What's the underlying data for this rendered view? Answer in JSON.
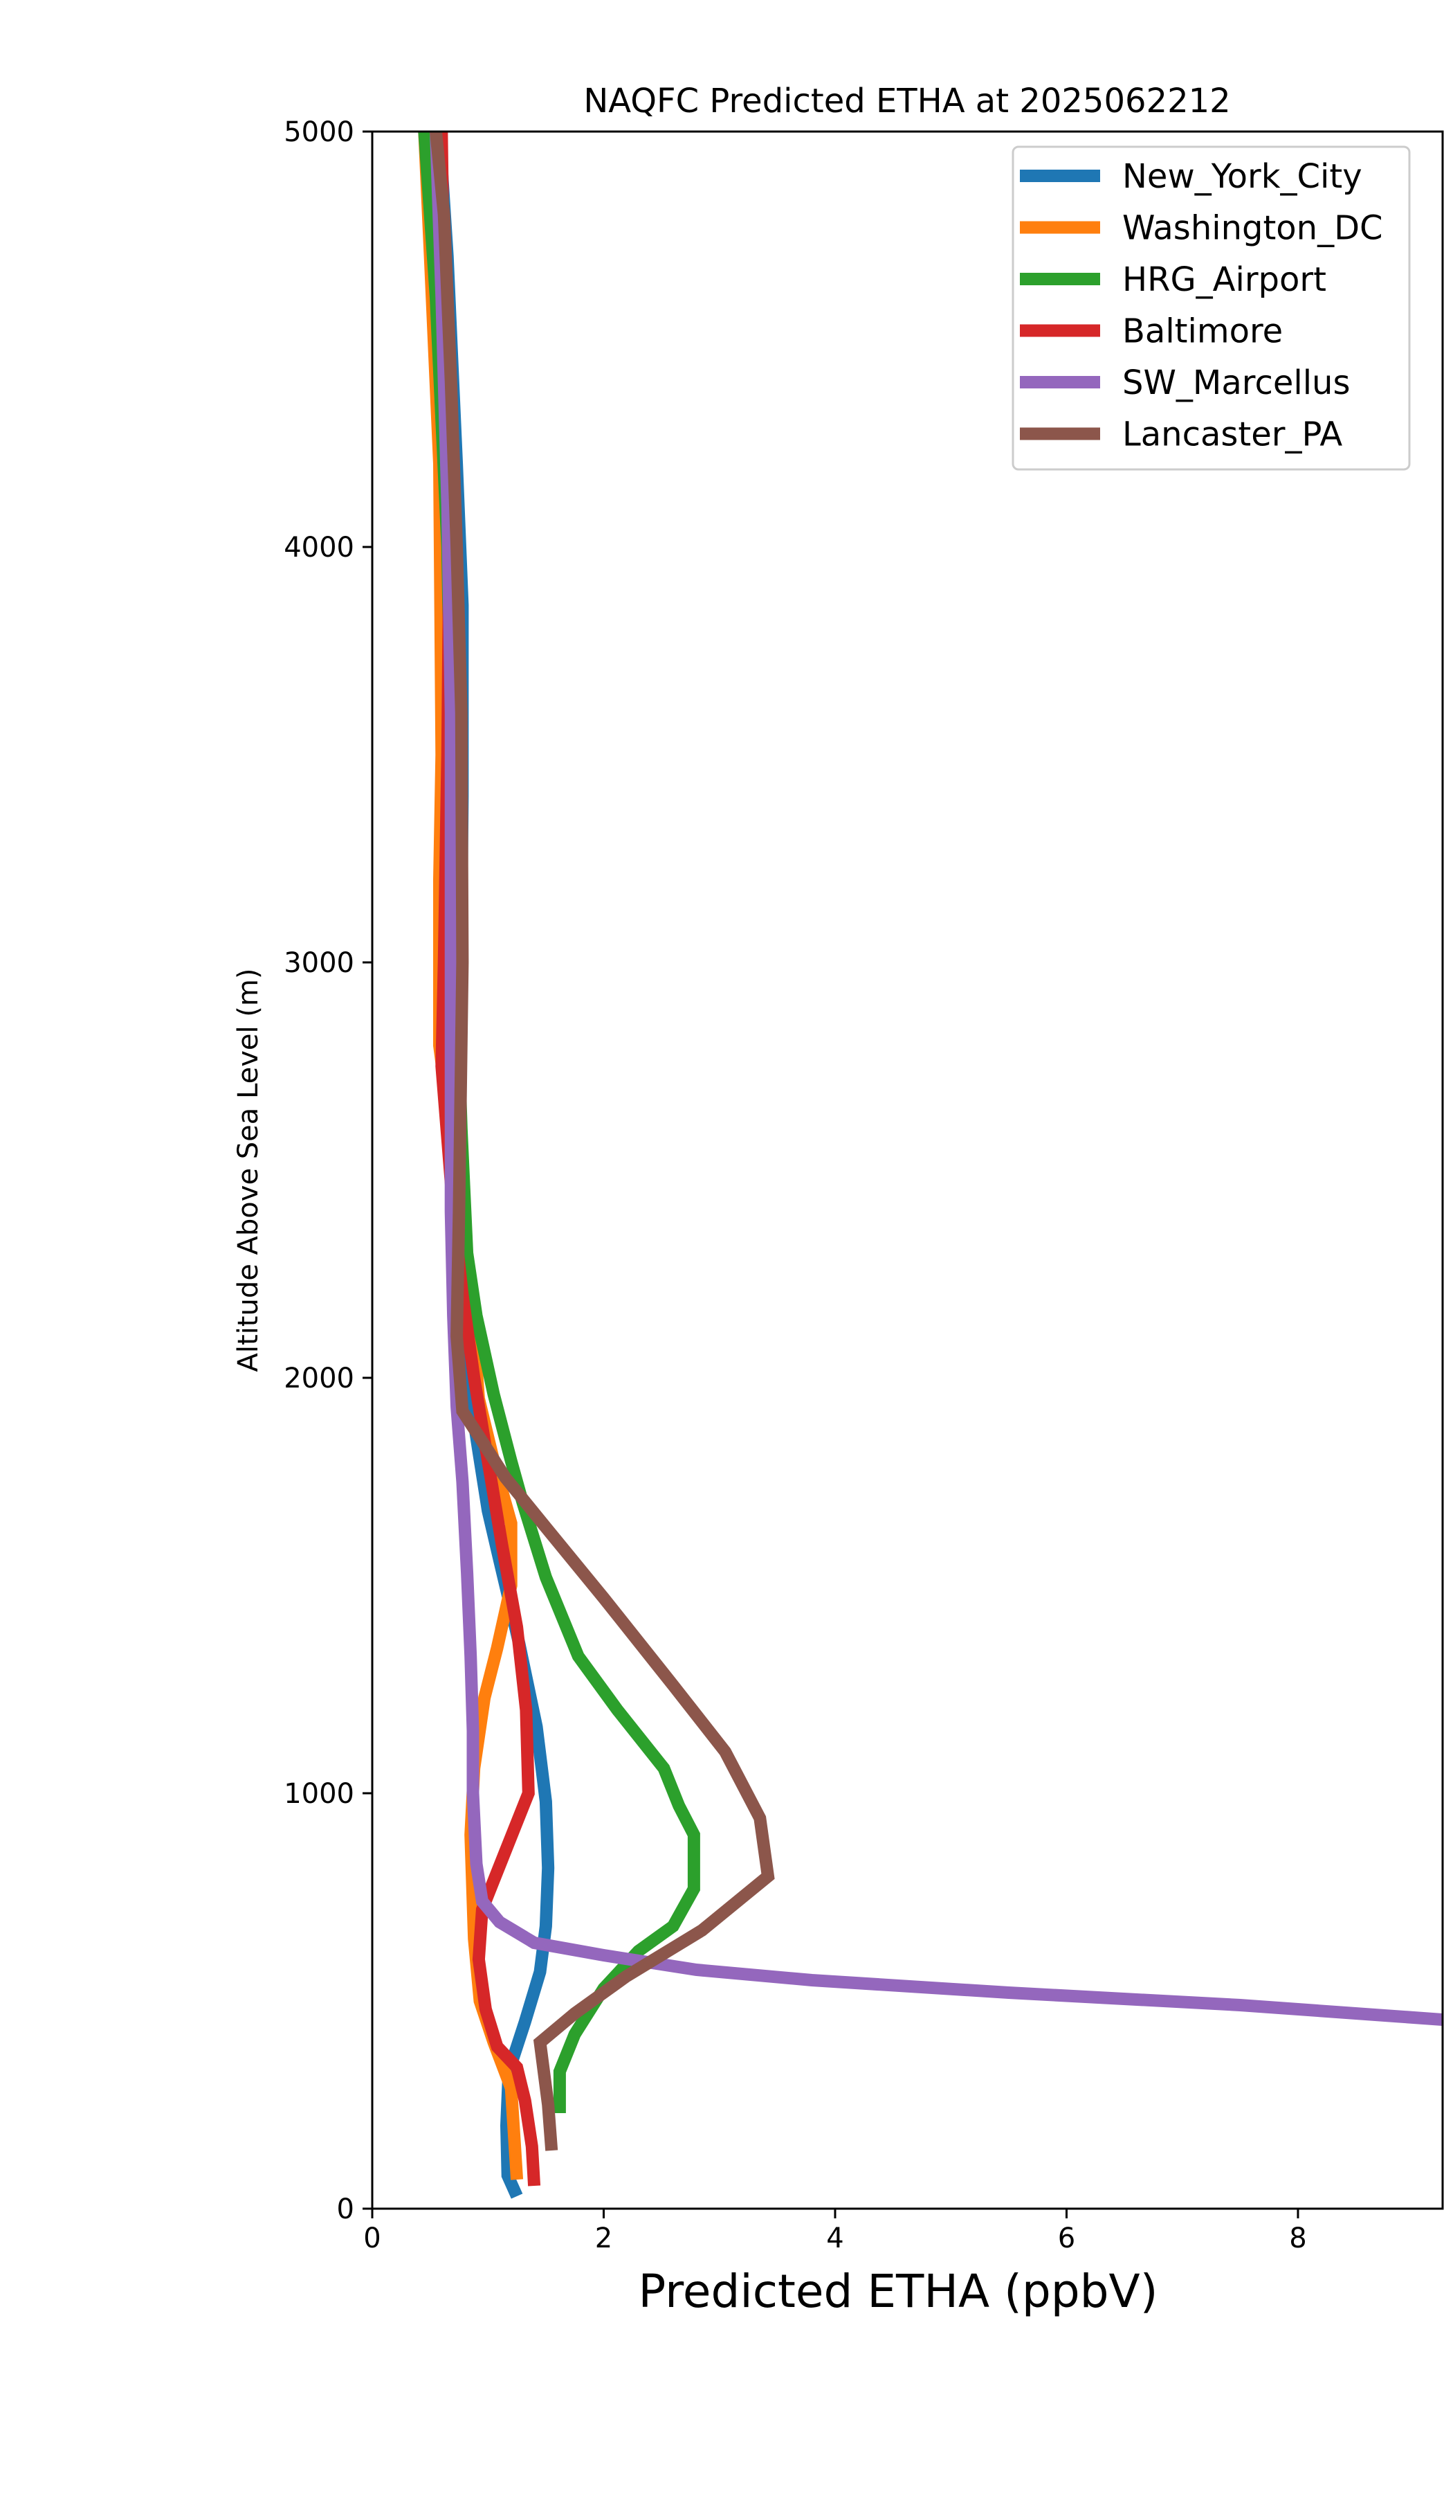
{
  "chart_data": {
    "type": "line",
    "title": "NAQFC Predicted ETHA at 2025062212",
    "xlabel": "Predicted ETHA (ppbV)",
    "ylabel": "Altitude Above Sea Level (m)",
    "xlim": [
      0,
      9.25
    ],
    "ylim": [
      0,
      5000
    ],
    "xticks": [
      0,
      2,
      4,
      6,
      8
    ],
    "yticks": [
      0,
      1000,
      2000,
      3000,
      4000,
      5000
    ],
    "grid": false,
    "legend_position": "top-right",
    "series": [
      {
        "name": "New_York_City",
        "color": "#1f77b4",
        "points": [
          [
            1.25,
            30
          ],
          [
            1.17,
            80
          ],
          [
            1.16,
            200
          ],
          [
            1.18,
            330
          ],
          [
            1.32,
            450
          ],
          [
            1.45,
            570
          ],
          [
            1.5,
            680
          ],
          [
            1.52,
            820
          ],
          [
            1.5,
            980
          ],
          [
            1.42,
            1160
          ],
          [
            1.27,
            1360
          ],
          [
            1.1,
            1560
          ],
          [
            1.0,
            1680
          ],
          [
            0.92,
            1820
          ],
          [
            0.82,
            2000
          ],
          [
            0.77,
            2200
          ],
          [
            0.76,
            2800
          ],
          [
            0.78,
            3400
          ],
          [
            0.78,
            3860
          ],
          [
            0.73,
            4200
          ],
          [
            0.65,
            4700
          ],
          [
            0.58,
            5000
          ]
        ]
      },
      {
        "name": "Washington_DC",
        "color": "#ff7f0e",
        "points": [
          [
            1.25,
            70
          ],
          [
            1.23,
            160
          ],
          [
            1.2,
            290
          ],
          [
            1.05,
            400
          ],
          [
            0.93,
            500
          ],
          [
            0.88,
            650
          ],
          [
            0.85,
            900
          ],
          [
            0.88,
            1060
          ],
          [
            0.97,
            1230
          ],
          [
            1.08,
            1350
          ],
          [
            1.2,
            1500
          ],
          [
            1.2,
            1650
          ],
          [
            1.05,
            1800
          ],
          [
            0.92,
            1950
          ],
          [
            0.88,
            2100
          ],
          [
            0.77,
            2400
          ],
          [
            0.58,
            2800
          ],
          [
            0.58,
            3200
          ],
          [
            0.6,
            3500
          ],
          [
            0.58,
            4200
          ],
          [
            0.5,
            4700
          ],
          [
            0.45,
            5000
          ]
        ]
      },
      {
        "name": "HRG_Airport",
        "color": "#2ca02c",
        "points": [
          [
            1.62,
            230
          ],
          [
            1.62,
            330
          ],
          [
            1.75,
            420
          ],
          [
            2.0,
            530
          ],
          [
            2.3,
            620
          ],
          [
            2.6,
            680
          ],
          [
            2.78,
            770
          ],
          [
            2.78,
            900
          ],
          [
            2.65,
            970
          ],
          [
            2.52,
            1060
          ],
          [
            2.12,
            1200
          ],
          [
            1.78,
            1330
          ],
          [
            1.5,
            1520
          ],
          [
            1.3,
            1700
          ],
          [
            1.2,
            1800
          ],
          [
            1.05,
            1960
          ],
          [
            0.9,
            2150
          ],
          [
            0.82,
            2300
          ],
          [
            0.77,
            2600
          ],
          [
            0.7,
            3200
          ],
          [
            0.65,
            4000
          ],
          [
            0.55,
            4600
          ],
          [
            0.45,
            5000
          ]
        ]
      },
      {
        "name": "Baltimore",
        "color": "#d62728",
        "points": [
          [
            1.4,
            55
          ],
          [
            1.38,
            150
          ],
          [
            1.32,
            260
          ],
          [
            1.25,
            340
          ],
          [
            1.08,
            390
          ],
          [
            0.98,
            480
          ],
          [
            0.92,
            600
          ],
          [
            0.95,
            720
          ],
          [
            1.15,
            860
          ],
          [
            1.35,
            1000
          ],
          [
            1.33,
            1200
          ],
          [
            1.25,
            1400
          ],
          [
            1.12,
            1600
          ],
          [
            1.0,
            1800
          ],
          [
            0.88,
            2000
          ],
          [
            0.78,
            2200
          ],
          [
            0.7,
            2400
          ],
          [
            0.6,
            2750
          ],
          [
            0.62,
            3000
          ],
          [
            0.65,
            3500
          ],
          [
            0.67,
            4100
          ],
          [
            0.62,
            4600
          ],
          [
            0.6,
            5000
          ]
        ]
      },
      {
        "name": "SW_Marcellus",
        "color": "#9467bd",
        "points": [
          [
            9.25,
            455
          ],
          [
            7.5,
            490
          ],
          [
            5.5,
            520
          ],
          [
            3.8,
            550
          ],
          [
            2.8,
            575
          ],
          [
            2.0,
            610
          ],
          [
            1.4,
            640
          ],
          [
            1.1,
            690
          ],
          [
            0.95,
            740
          ],
          [
            0.9,
            830
          ],
          [
            0.87,
            1000
          ],
          [
            0.87,
            1150
          ],
          [
            0.85,
            1330
          ],
          [
            0.82,
            1530
          ],
          [
            0.78,
            1750
          ],
          [
            0.73,
            1930
          ],
          [
            0.7,
            2150
          ],
          [
            0.68,
            2400
          ],
          [
            0.68,
            3000
          ],
          [
            0.68,
            3600
          ],
          [
            0.65,
            4100
          ],
          [
            0.6,
            4600
          ],
          [
            0.55,
            5000
          ]
        ]
      },
      {
        "name": "Lancaster_PA",
        "color": "#8c564b",
        "points": [
          [
            1.55,
            140
          ],
          [
            1.52,
            250
          ],
          [
            1.45,
            400
          ],
          [
            1.75,
            470
          ],
          [
            2.2,
            560
          ],
          [
            2.85,
            670
          ],
          [
            3.42,
            800
          ],
          [
            3.35,
            940
          ],
          [
            3.05,
            1100
          ],
          [
            2.6,
            1260
          ],
          [
            2.0,
            1470
          ],
          [
            1.5,
            1640
          ],
          [
            1.15,
            1760
          ],
          [
            0.92,
            1860
          ],
          [
            0.78,
            1920
          ],
          [
            0.73,
            2100
          ],
          [
            0.75,
            2400
          ],
          [
            0.78,
            3000
          ],
          [
            0.77,
            3600
          ],
          [
            0.73,
            4000
          ],
          [
            0.68,
            4400
          ],
          [
            0.62,
            4800
          ],
          [
            0.55,
            5000
          ]
        ]
      }
    ]
  }
}
